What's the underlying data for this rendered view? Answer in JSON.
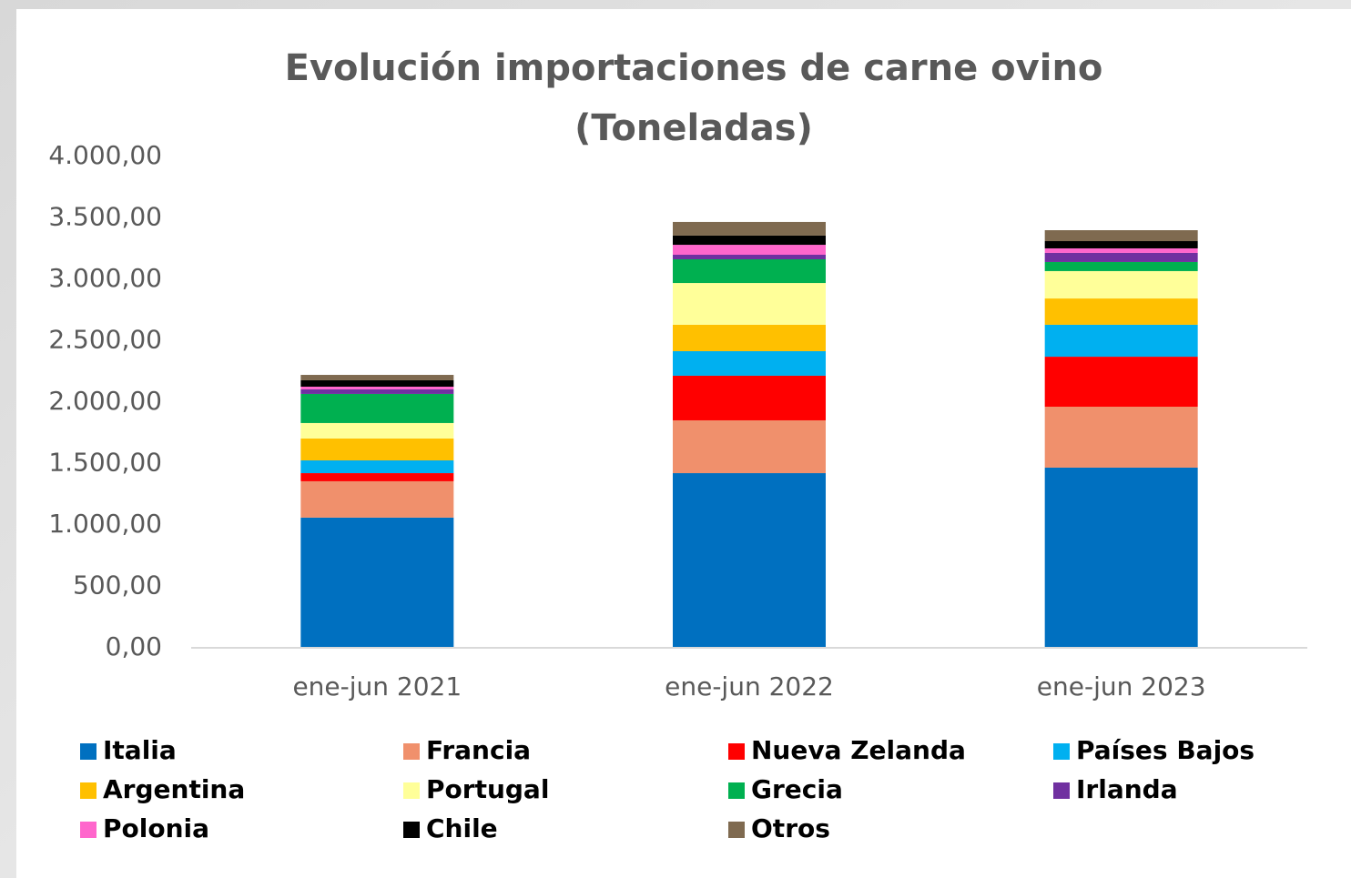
{
  "chart_data": {
    "type": "stacked_bar",
    "title": [
      "Evolución importaciones de carne ovino",
      "(Toneladas)"
    ],
    "categories": [
      "ene-jun 2021",
      "ene-jun 2022",
      "ene-jun 2023"
    ],
    "series": [
      {
        "name": "Italia",
        "color": "#0070c0",
        "values": [
          1060,
          1422,
          1467
        ]
      },
      {
        "name": "Francia",
        "color": "#f0906c",
        "values": [
          296,
          430,
          496
        ]
      },
      {
        "name": "Nueva Zelanda",
        "color": "#ff0000",
        "values": [
          66,
          363,
          407
        ]
      },
      {
        "name": "Países Bajos",
        "color": "#00b0f0",
        "values": [
          104,
          200,
          260
        ]
      },
      {
        "name": "Argentina",
        "color": "#ffc000",
        "values": [
          178,
          215,
          214
        ]
      },
      {
        "name": "Portugal",
        "color": "#ffff99",
        "values": [
          126,
          340,
          223
        ]
      },
      {
        "name": "Grecia",
        "color": "#00b050",
        "values": [
          237,
          193,
          74
        ]
      },
      {
        "name": "Irlanda",
        "color": "#7030a0",
        "values": [
          37,
          37,
          74
        ]
      },
      {
        "name": "Polonia",
        "color": "#ff66cc",
        "values": [
          22,
          81,
          37
        ]
      },
      {
        "name": "Chile",
        "color": "#000000",
        "values": [
          52,
          75,
          59
        ]
      },
      {
        "name": "Otros",
        "color": "#7f6a50",
        "values": [
          44,
          111,
          89
        ]
      }
    ],
    "ylim": [
      0,
      4000
    ],
    "yticks": [
      {
        "value": 0,
        "label": "0,00"
      },
      {
        "value": 500,
        "label": "500,00"
      },
      {
        "value": 1000,
        "label": "1.000,00"
      },
      {
        "value": 1500,
        "label": "1.500,00"
      },
      {
        "value": 2000,
        "label": "2.000,00"
      },
      {
        "value": 2500,
        "label": "2.500,00"
      },
      {
        "value": 3000,
        "label": "3.000,00"
      },
      {
        "value": 3500,
        "label": "3.500,00"
      },
      {
        "value": 4000,
        "label": "4.000,00"
      }
    ],
    "grid": false,
    "legend": "bottom"
  }
}
